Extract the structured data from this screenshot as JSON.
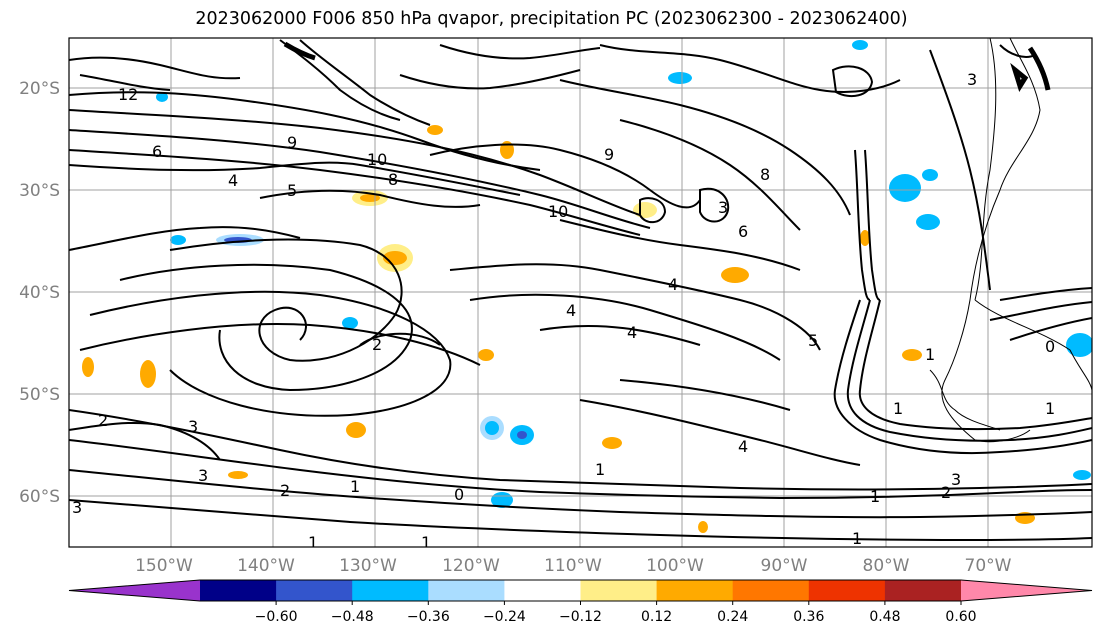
{
  "title": "2023062000 F006 850 hPa qvapor, precipitation PC (2023062300 - 2023062400)",
  "map": {
    "lat_labels": [
      "20°S",
      "30°S",
      "40°S",
      "50°S",
      "60°S"
    ],
    "lon_labels": [
      "150°W",
      "140°W",
      "130°W",
      "120°W",
      "110°W",
      "100°W",
      "90°W",
      "80°W",
      "70°W"
    ],
    "contour_labels": [
      "12",
      "9",
      "6",
      "4",
      "5",
      "10",
      "8",
      "9",
      "10",
      "8",
      "3",
      "6",
      "5",
      "4",
      "2",
      "3",
      "4",
      "4",
      "2",
      "3",
      "3",
      "2",
      "1",
      "0",
      "1",
      "1",
      "1",
      "4",
      "3",
      "2",
      "1",
      "1",
      "1",
      "1",
      "3",
      "0",
      "1"
    ]
  },
  "colorbar": {
    "colors": [
      "#9933cc",
      "#000088",
      "#3355cc",
      "#00bbff",
      "#aaddff",
      "#ffffff",
      "#ffee88",
      "#ffaa00",
      "#ff7700",
      "#ee3300",
      "#aa2222",
      "#ff88aa"
    ],
    "ticks": [
      "−0.60",
      "−0.48",
      "−0.36",
      "−0.24",
      "−0.12",
      "0.12",
      "0.24",
      "0.36",
      "0.48",
      "0.60"
    ]
  }
}
